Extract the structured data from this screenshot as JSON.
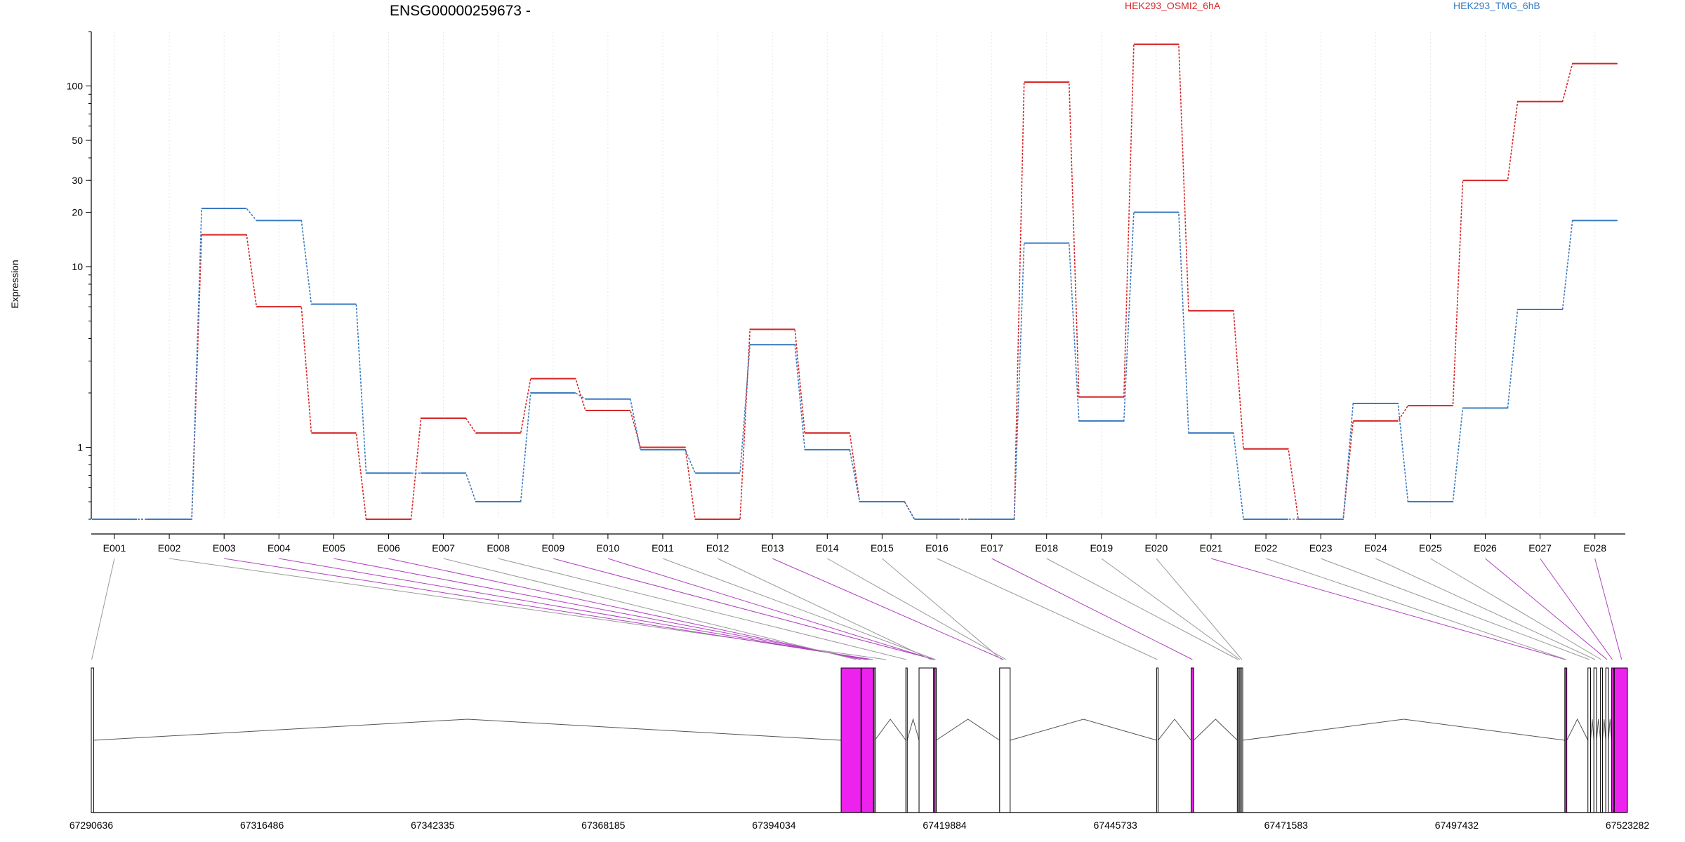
{
  "chart_data": {
    "type": "line",
    "title": "ENSG00000259673 -",
    "ylabel": "Expression",
    "yscale": "log",
    "ylim": [
      0.4,
      200
    ],
    "yticks": [
      1,
      10,
      20,
      30,
      50,
      100
    ],
    "grid": "vertical dotted",
    "legend_position": "top",
    "colors": {
      "HEK293_OSMI2_6hA": "#d62728",
      "HEK293_TMG_6hB": "#3a7bbf",
      "highlight": "#ee22ee",
      "connector": "#999999"
    },
    "categories": [
      "E001",
      "E002",
      "E003",
      "E004",
      "E005",
      "E006",
      "E007",
      "E008",
      "E009",
      "E010",
      "E011",
      "E012",
      "E013",
      "E014",
      "E015",
      "E016",
      "E017",
      "E018",
      "E019",
      "E020",
      "E021",
      "E022",
      "E023",
      "E024",
      "E025",
      "E026",
      "E027",
      "E028"
    ],
    "series": [
      {
        "name": "HEK293_OSMI2_6hA",
        "values": [
          0.4,
          0.4,
          15,
          6,
          1.2,
          0.4,
          1.45,
          1.2,
          2.4,
          1.6,
          1,
          0.4,
          4.5,
          1.2,
          0.5,
          0.4,
          0.4,
          105,
          1.9,
          170,
          5.7,
          0.98,
          0.4,
          1.4,
          1.7,
          30,
          82,
          133
        ]
      },
      {
        "name": "HEK293_TMG_6hB",
        "values": [
          0.4,
          0.4,
          21,
          18,
          6.2,
          0.72,
          0.72,
          0.5,
          2,
          1.85,
          0.97,
          0.72,
          3.7,
          0.97,
          0.5,
          0.4,
          0.4,
          13.5,
          1.4,
          20,
          1.2,
          0.4,
          0.4,
          1.75,
          0.5,
          1.65,
          5.8,
          18
        ]
      }
    ],
    "gene_model": {
      "axis_ticks": [
        "67290636",
        "67316486",
        "67342335",
        "67368185",
        "67394034",
        "67419884",
        "67445733",
        "67471583",
        "67497432",
        "67523282"
      ],
      "axis_range": [
        67290636,
        67523282
      ],
      "exons": [
        [
          67290636,
          67291000,
          false
        ],
        [
          67404200,
          67407200,
          true
        ],
        [
          67407300,
          67409100,
          true
        ],
        [
          67409200,
          67409300,
          false
        ],
        [
          67414000,
          67414200,
          false
        ],
        [
          67416000,
          67418200,
          false
        ],
        [
          67418300,
          67418600,
          true
        ],
        [
          67428200,
          67429800,
          false
        ],
        [
          67452000,
          67452200,
          false
        ],
        [
          67457200,
          67457600,
          true
        ],
        [
          67464200,
          67464400,
          false
        ],
        [
          67464500,
          67464700,
          false
        ],
        [
          67464800,
          67465000,
          false
        ],
        [
          67513800,
          67514100,
          true
        ],
        [
          67517300,
          67517700,
          false
        ],
        [
          67518200,
          67518600,
          false
        ],
        [
          67519200,
          67519500,
          false
        ],
        [
          67520000,
          67520400,
          false
        ],
        [
          67520900,
          67521200,
          true
        ],
        [
          67521300,
          67523282,
          true
        ]
      ],
      "intron_segments": [
        [
          67291000,
          67404200
        ],
        [
          67409300,
          67414000
        ],
        [
          67414200,
          67416000
        ],
        [
          67418600,
          67428200
        ],
        [
          67429800,
          67452000
        ],
        [
          67452200,
          67457200
        ],
        [
          67457600,
          67464200
        ],
        [
          67465000,
          67513800
        ],
        [
          67514100,
          67517300
        ],
        [
          67517700,
          67518200
        ],
        [
          67518600,
          67519200
        ],
        [
          67519500,
          67520000
        ],
        [
          67520400,
          67520900
        ]
      ],
      "exon_map": [
        [
          67290700,
          false
        ],
        [
          67411000,
          false
        ],
        [
          67409000,
          true
        ],
        [
          67408400,
          true
        ],
        [
          67408000,
          true
        ],
        [
          67407200,
          true
        ],
        [
          67406500,
          false
        ],
        [
          67414100,
          false
        ],
        [
          67418400,
          true
        ],
        [
          67418200,
          true
        ],
        [
          67418500,
          false
        ],
        [
          67417800,
          false
        ],
        [
          67428800,
          true
        ],
        [
          67429200,
          false
        ],
        [
          67428500,
          false
        ],
        [
          67452100,
          false
        ],
        [
          67457400,
          true
        ],
        [
          67464300,
          false
        ],
        [
          67464600,
          false
        ],
        [
          67464900,
          false
        ],
        [
          67513900,
          true
        ],
        [
          67514000,
          false
        ],
        [
          67517500,
          false
        ],
        [
          67518400,
          false
        ],
        [
          67519300,
          false
        ],
        [
          67520200,
          true
        ],
        [
          67521000,
          true
        ],
        [
          67522400,
          true
        ]
      ]
    }
  }
}
